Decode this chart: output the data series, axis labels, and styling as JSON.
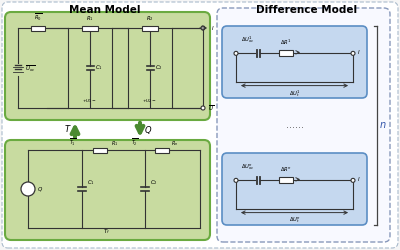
{
  "fig_width": 4.0,
  "fig_height": 2.5,
  "dpi": 100,
  "bg_color": "#f5f5f5",
  "mean_model_title": "Mean Model",
  "diff_model_title": "Difference Model",
  "green_fill": "#c8dba0",
  "green_border": "#6aaa40",
  "blue_fill": "#c5d8ef",
  "blue_border": "#5b8ec4",
  "arrow_green": "#4a8a30",
  "line_color": "#333333",
  "n_label": "n",
  "dots_label": "......",
  "T_label": "T",
  "Q_label": "Q"
}
